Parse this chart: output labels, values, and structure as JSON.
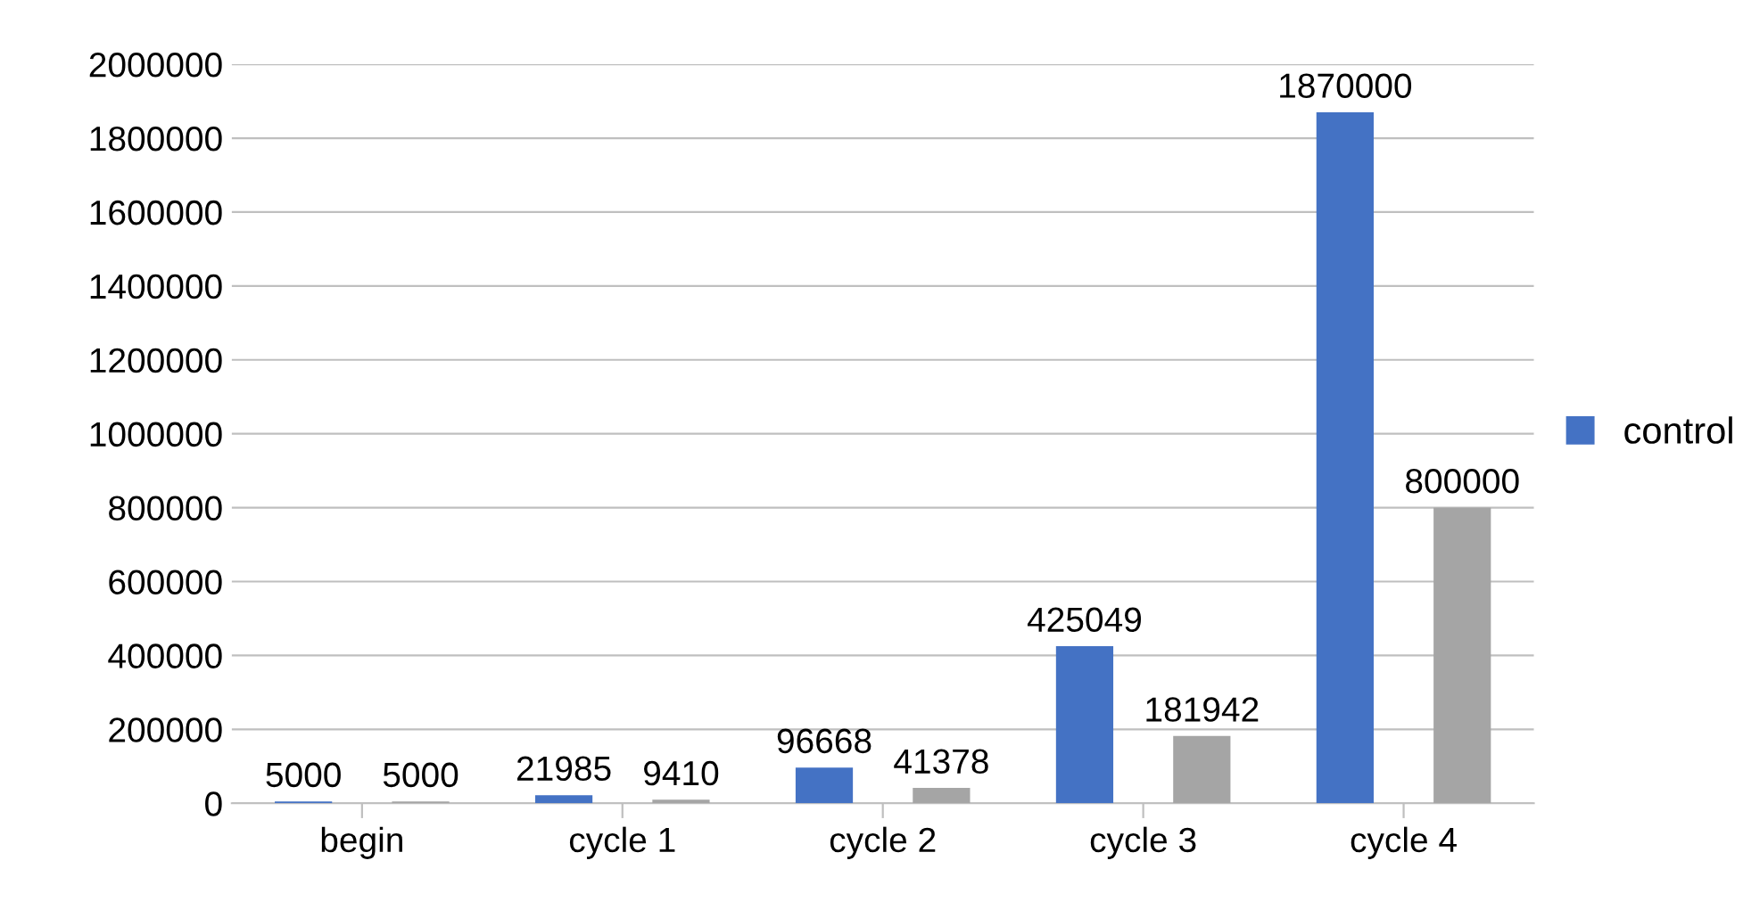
{
  "chart_data": {
    "type": "bar",
    "categories": [
      "begin",
      "cycle 1",
      "cycle 2",
      "cycle 3",
      "cycle 4"
    ],
    "series": [
      {
        "name": "control",
        "color": "#4472c4",
        "values": [
          5000,
          21985,
          96668,
          425049,
          1870000
        ]
      },
      {
        "color": "#a5a5a5",
        "values": [
          5000,
          9410,
          41378,
          181942,
          800000
        ]
      }
    ],
    "ylim": [
      0,
      2000000
    ],
    "yticks": [
      0,
      200000,
      400000,
      600000,
      800000,
      1000000,
      1200000,
      1400000,
      1600000,
      1800000,
      2000000
    ],
    "grid": "y",
    "legend": "right",
    "data_labels": true
  }
}
